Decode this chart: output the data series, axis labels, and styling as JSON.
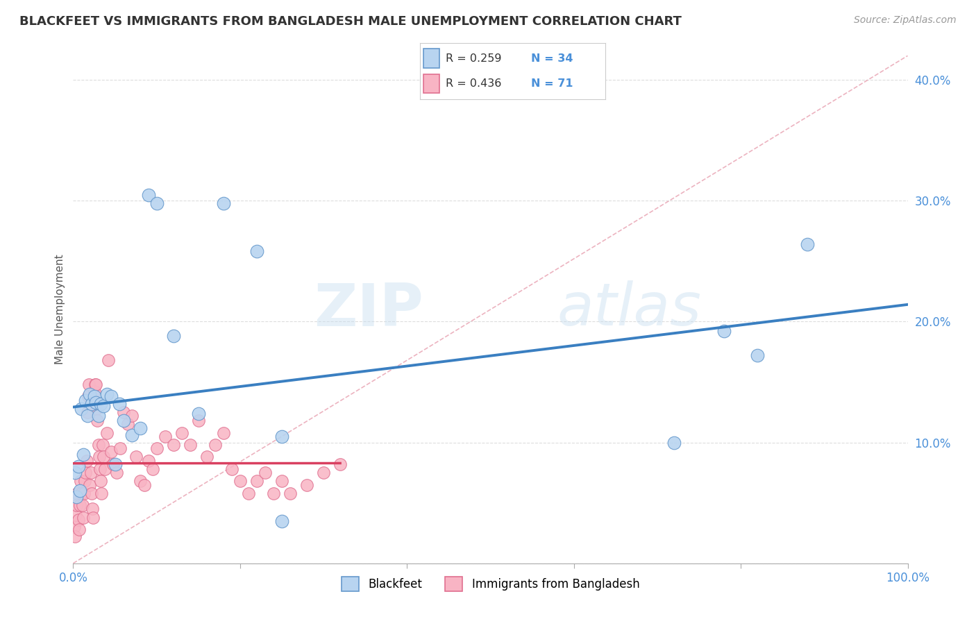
{
  "title": "BLACKFEET VS IMMIGRANTS FROM BANGLADESH MALE UNEMPLOYMENT CORRELATION CHART",
  "source": "Source: ZipAtlas.com",
  "ylabel": "Male Unemployment",
  "xlim": [
    0.0,
    1.0
  ],
  "ylim": [
    0.0,
    0.42
  ],
  "xticks": [
    0.0,
    0.2,
    0.4,
    0.6,
    0.8,
    1.0
  ],
  "xticklabels": [
    "0.0%",
    "",
    "",
    "",
    "",
    "100.0%"
  ],
  "yticks": [
    0.0,
    0.1,
    0.2,
    0.3,
    0.4
  ],
  "yticklabels": [
    "",
    "10.0%",
    "20.0%",
    "30.0%",
    "40.0%"
  ],
  "blackfeet_color": "#b8d4f0",
  "blackfeet_edge": "#6699cc",
  "bangladesh_color": "#f8b4c4",
  "bangladesh_edge": "#e07090",
  "trend_blue_color": "#3a7fc1",
  "trend_pink_color": "#d94060",
  "diag_color": "#e8a0b0",
  "blackfeet_x": [
    0.002,
    0.004,
    0.006,
    0.008,
    0.01,
    0.012,
    0.015,
    0.017,
    0.02,
    0.022,
    0.025,
    0.027,
    0.03,
    0.033,
    0.036,
    0.04,
    0.045,
    0.05,
    0.055,
    0.06,
    0.07,
    0.08,
    0.09,
    0.1,
    0.12,
    0.15,
    0.18,
    0.22,
    0.25,
    0.72,
    0.78,
    0.82,
    0.88,
    0.25
  ],
  "blackfeet_y": [
    0.075,
    0.055,
    0.08,
    0.06,
    0.128,
    0.09,
    0.135,
    0.122,
    0.14,
    0.132,
    0.138,
    0.133,
    0.122,
    0.132,
    0.13,
    0.14,
    0.138,
    0.082,
    0.132,
    0.118,
    0.106,
    0.112,
    0.305,
    0.298,
    0.188,
    0.124,
    0.298,
    0.258,
    0.105,
    0.1,
    0.192,
    0.172,
    0.264,
    0.035
  ],
  "bangladesh_x": [
    0.001,
    0.002,
    0.003,
    0.004,
    0.005,
    0.006,
    0.007,
    0.008,
    0.009,
    0.01,
    0.011,
    0.012,
    0.013,
    0.014,
    0.015,
    0.016,
    0.017,
    0.018,
    0.019,
    0.02,
    0.021,
    0.022,
    0.023,
    0.024,
    0.025,
    0.026,
    0.027,
    0.028,
    0.029,
    0.03,
    0.031,
    0.032,
    0.033,
    0.034,
    0.035,
    0.036,
    0.038,
    0.04,
    0.042,
    0.045,
    0.048,
    0.052,
    0.056,
    0.06,
    0.065,
    0.07,
    0.075,
    0.08,
    0.085,
    0.09,
    0.095,
    0.1,
    0.11,
    0.12,
    0.13,
    0.14,
    0.15,
    0.16,
    0.17,
    0.18,
    0.19,
    0.2,
    0.21,
    0.22,
    0.23,
    0.24,
    0.25,
    0.26,
    0.28,
    0.3,
    0.32
  ],
  "bangladesh_y": [
    0.03,
    0.022,
    0.04,
    0.048,
    0.058,
    0.036,
    0.028,
    0.048,
    0.068,
    0.058,
    0.048,
    0.038,
    0.058,
    0.068,
    0.075,
    0.085,
    0.125,
    0.138,
    0.148,
    0.065,
    0.075,
    0.058,
    0.045,
    0.038,
    0.142,
    0.148,
    0.148,
    0.128,
    0.118,
    0.098,
    0.088,
    0.078,
    0.068,
    0.058,
    0.098,
    0.088,
    0.078,
    0.108,
    0.168,
    0.092,
    0.082,
    0.075,
    0.095,
    0.125,
    0.115,
    0.122,
    0.088,
    0.068,
    0.065,
    0.085,
    0.078,
    0.095,
    0.105,
    0.098,
    0.108,
    0.098,
    0.118,
    0.088,
    0.098,
    0.108,
    0.078,
    0.068,
    0.058,
    0.068,
    0.075,
    0.058,
    0.068,
    0.058,
    0.065,
    0.075,
    0.082
  ],
  "legend_r1": "R = 0.259",
  "legend_n1": "N = 34",
  "legend_r2": "R = 0.436",
  "legend_n2": "N = 71",
  "watermark_zip": "ZIP",
  "watermark_atlas": "atlas"
}
